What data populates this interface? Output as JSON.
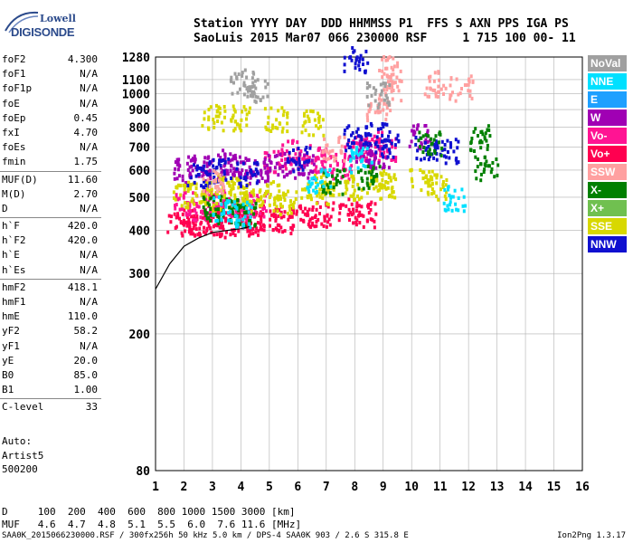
{
  "logo": {
    "line1": "Lowell",
    "line2": "DIGISONDE"
  },
  "header": {
    "line1": "Station YYYY DAY  DDD HHMMSS P1  FFS S AXN PPS IGA PS",
    "line2": "SaoLuis 2015 Mar07 066 230000 RSF     1 715 100 00- 11"
  },
  "params": [
    [
      {
        "label": "foF2",
        "value": "4.300"
      },
      {
        "label": "foF1",
        "value": "N/A"
      },
      {
        "label": "foF1p",
        "value": "N/A"
      },
      {
        "label": "foE",
        "value": "N/A"
      },
      {
        "label": "foEp",
        "value": "0.45"
      },
      {
        "label": "fxI",
        "value": "4.70"
      },
      {
        "label": "foEs",
        "value": "N/A"
      },
      {
        "label": "fmin",
        "value": "1.75"
      }
    ],
    [
      {
        "label": "MUF(D)",
        "value": "11.60"
      },
      {
        "label": "M(D)",
        "value": "2.70"
      },
      {
        "label": "D",
        "value": "N/A"
      }
    ],
    [
      {
        "label": "h`F",
        "value": "420.0"
      },
      {
        "label": "h`F2",
        "value": "420.0"
      },
      {
        "label": "h`E",
        "value": "N/A"
      },
      {
        "label": "h`Es",
        "value": "N/A"
      }
    ],
    [
      {
        "label": "hmF2",
        "value": "418.1"
      },
      {
        "label": "hmF1",
        "value": "N/A"
      },
      {
        "label": "hmE",
        "value": "110.0"
      },
      {
        "label": "yF2",
        "value": "58.2"
      },
      {
        "label": "yF1",
        "value": "N/A"
      },
      {
        "label": "yE",
        "value": "20.0"
      },
      {
        "label": "B0",
        "value": "85.0"
      },
      {
        "label": "B1",
        "value": "1.00"
      }
    ],
    [
      {
        "label": "C-level",
        "value": "33"
      }
    ]
  ],
  "auto": {
    "line1": "Auto:",
    "line2": "Artist5",
    "line3": "500200"
  },
  "footer": {
    "row_d": "D     100  200  400  600  800 1000 1500 3000 [km]",
    "row_muf": "MUF   4.6  4.7  4.8  5.1  5.5  6.0  7.6 11.6 [MHz]",
    "info": "SAA0K_2015066230000.RSF / 300fx256h 50 kHz 5.0 km / DPS-4 SAA0K 903 / 2.6 S 315.8 E",
    "version": "Ion2Png 1.3.17"
  },
  "legend": [
    {
      "label": "NoVal",
      "color": "#a0a0a0"
    },
    {
      "label": "NNE",
      "color": "#00e0ff"
    },
    {
      "label": "E",
      "color": "#1ea0ff"
    },
    {
      "label": "W",
      "color": "#a000b4"
    },
    {
      "label": "Vo-",
      "color": "#ff1493"
    },
    {
      "label": "Vo+",
      "color": "#ff0050"
    },
    {
      "label": "SSW",
      "color": "#ffa0a0"
    },
    {
      "label": "X-",
      "color": "#008000"
    },
    {
      "label": "X+",
      "color": "#70c050"
    },
    {
      "label": "SSE",
      "color": "#d8d800"
    },
    {
      "label": "NNW",
      "color": "#1010d0"
    }
  ],
  "chart_data": {
    "type": "scatter",
    "title": "",
    "xlabel": "",
    "ylabel": "",
    "xlim": [
      1,
      16
    ],
    "ylim": [
      80,
      1280
    ],
    "x_ticks": [
      1,
      2,
      3,
      4,
      5,
      6,
      7,
      8,
      9,
      10,
      11,
      12,
      13,
      14,
      15,
      16
    ],
    "y_ticks": [
      80,
      200,
      300,
      400,
      500,
      600,
      700,
      800,
      900,
      1000,
      1100,
      1280
    ],
    "y_scale": "logarithmic",
    "grid": true,
    "legend_position": "right",
    "series": [
      {
        "name": "Vo+",
        "points": [
          [
            1.8,
            430
          ],
          [
            2.2,
            420
          ],
          [
            2.6,
            425
          ],
          [
            3.0,
            420
          ],
          [
            3.5,
            425
          ],
          [
            4.0,
            430
          ],
          [
            4.4,
            420
          ],
          [
            5.0,
            440
          ],
          [
            5.5,
            430
          ],
          [
            6.3,
            440
          ],
          [
            6.8,
            450
          ],
          [
            7.8,
            460
          ],
          [
            8.3,
            450
          ]
        ]
      },
      {
        "name": "Vo-",
        "points": [
          [
            2.0,
            480
          ],
          [
            2.5,
            470
          ],
          [
            3.0,
            490
          ],
          [
            3.4,
            475
          ],
          [
            4.0,
            470
          ],
          [
            4.5,
            480
          ],
          [
            5.2,
            650
          ],
          [
            5.8,
            680
          ],
          [
            6.4,
            660
          ],
          [
            6.9,
            640
          ],
          [
            7.5,
            620
          ],
          [
            8.0,
            700
          ],
          [
            8.6,
            720
          ],
          [
            9.0,
            700
          ]
        ]
      },
      {
        "name": "W",
        "points": [
          [
            2.0,
            600
          ],
          [
            2.5,
            620
          ],
          [
            3.0,
            610
          ],
          [
            3.5,
            640
          ],
          [
            4.0,
            620
          ],
          [
            4.5,
            600
          ],
          [
            5.3,
            630
          ],
          [
            6.2,
            620
          ],
          [
            8.2,
            680
          ],
          [
            8.8,
            660
          ],
          [
            10.2,
            760
          ]
        ]
      },
      {
        "name": "SSE",
        "points": [
          [
            2.0,
            510
          ],
          [
            2.5,
            520
          ],
          [
            3.0,
            500
          ],
          [
            3.5,
            540
          ],
          [
            4.0,
            520
          ],
          [
            4.5,
            500
          ],
          [
            5.0,
            520
          ],
          [
            5.5,
            490
          ],
          [
            6.5,
            540
          ],
          [
            7.0,
            520
          ],
          [
            8.0,
            540
          ],
          [
            8.8,
            560
          ],
          [
            9.0,
            540
          ],
          [
            10.3,
            560
          ],
          [
            10.8,
            540
          ],
          [
            3.0,
            860
          ],
          [
            4.0,
            860
          ],
          [
            5.2,
            850
          ],
          [
            6.5,
            830
          ]
        ]
      },
      {
        "name": "NNW",
        "points": [
          [
            2.5,
            580
          ],
          [
            3.2,
            600
          ],
          [
            4.2,
            590
          ],
          [
            6.0,
            650
          ],
          [
            8.0,
            750
          ],
          [
            8.7,
            760
          ],
          [
            9.1,
            720
          ],
          [
            10.5,
            700
          ],
          [
            11.2,
            690
          ],
          [
            8.0,
            1270
          ]
        ]
      },
      {
        "name": "X-",
        "points": [
          [
            3.0,
            470
          ],
          [
            3.5,
            460
          ],
          [
            4.2,
            450
          ],
          [
            7.2,
            560
          ],
          [
            8.5,
            580
          ],
          [
            10.6,
            720
          ],
          [
            12.3,
            750
          ],
          [
            12.6,
            610
          ]
        ]
      },
      {
        "name": "NNE",
        "points": [
          [
            3.4,
            470
          ],
          [
            4.0,
            450
          ],
          [
            6.7,
            560
          ],
          [
            8.2,
            650
          ],
          [
            11.5,
            500
          ]
        ]
      },
      {
        "name": "SSW",
        "points": [
          [
            3.0,
            560
          ],
          [
            7.2,
            700
          ],
          [
            8.8,
            920
          ],
          [
            9.2,
            1050
          ],
          [
            9.2,
            1200
          ],
          [
            10.8,
            1080
          ],
          [
            11.7,
            1050
          ]
        ]
      },
      {
        "name": "NoVal",
        "points": [
          [
            4.0,
            1090
          ],
          [
            4.5,
            1040
          ],
          [
            8.8,
            1000
          ]
        ]
      }
    ],
    "trace": {
      "name": "virtual height trace",
      "points": [
        [
          1.0,
          270
        ],
        [
          1.5,
          320
        ],
        [
          2.0,
          360
        ],
        [
          2.5,
          380
        ],
        [
          3.0,
          395
        ],
        [
          3.5,
          400
        ],
        [
          4.0,
          405
        ],
        [
          4.3,
          410
        ]
      ]
    }
  }
}
